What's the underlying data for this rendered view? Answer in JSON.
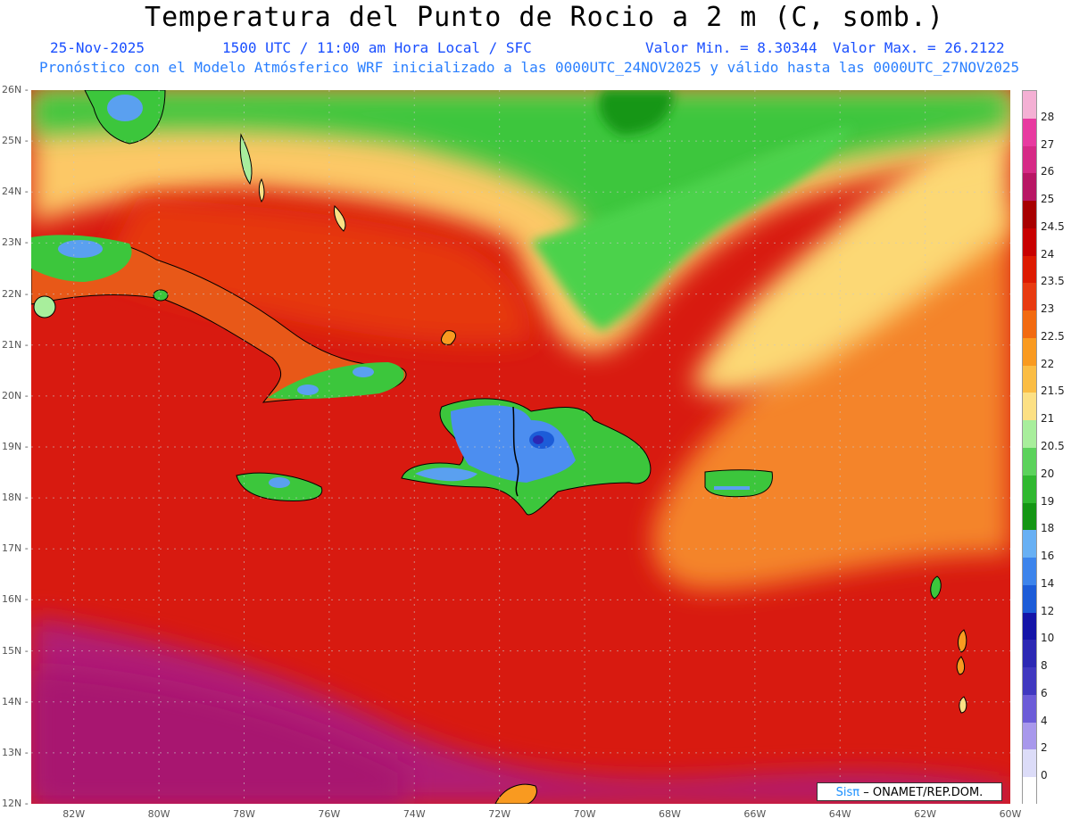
{
  "header": {
    "title": "Temperatura del Punto de Rocio a 2 m (C, somb.)",
    "date": "25-Nov-2025",
    "time": "1500 UTC / 11:00 am Hora Local / SFC",
    "min": "Valor Min. = 8.30344",
    "max": "Valor Max. = 26.2122",
    "subtitle": "Pronóstico con el Modelo Atmósferico WRF inicializado a las 0000UTC_24NOV2025 y válido hasta las  0000UTC_27NOV2025"
  },
  "axes": {
    "lat_labels": [
      "26N",
      "25N",
      "24N",
      "23N",
      "22N",
      "21N",
      "20N",
      "19N",
      "18N",
      "17N",
      "16N",
      "15N",
      "14N",
      "13N",
      "12N"
    ],
    "lon_labels": [
      "82W",
      "80W",
      "78W",
      "76W",
      "74W",
      "72W",
      "70W",
      "68W",
      "66W",
      "64W",
      "62W",
      "60W"
    ]
  },
  "colorbar": {
    "labels": [
      "28",
      "27",
      "26",
      "25",
      "24.5",
      "24",
      "23.5",
      "23",
      "22.5",
      "22",
      "21.5",
      "21",
      "20.5",
      "20",
      "19",
      "18",
      "16",
      "14",
      "12",
      "10",
      "8",
      "6",
      "4",
      "2",
      "0"
    ],
    "colors": [
      "#f4b0d4",
      "#e83aa0",
      "#d62a86",
      "#b81664",
      "#a80000",
      "#c80000",
      "#dd1a00",
      "#e83a10",
      "#f26a10",
      "#f99a20",
      "#fbbd44",
      "#fce084",
      "#a8ee9c",
      "#5cd25c",
      "#30b830",
      "#149614",
      "#68b0f4",
      "#3c84ec",
      "#1c5cd8",
      "#1414a8",
      "#2c28b4",
      "#4038c0",
      "#6c5cd8",
      "#a898ec",
      "#dcdcf8",
      "#ffffff"
    ]
  },
  "credit": {
    "logo": "Sisπ",
    "text": "– ONAMET/REP.DOM."
  },
  "colors": {
    "land_green": "#36c036",
    "ocean_red": "#d81a10",
    "blue_low": "#4c8ef0",
    "magenta_high": "#b8207c"
  }
}
